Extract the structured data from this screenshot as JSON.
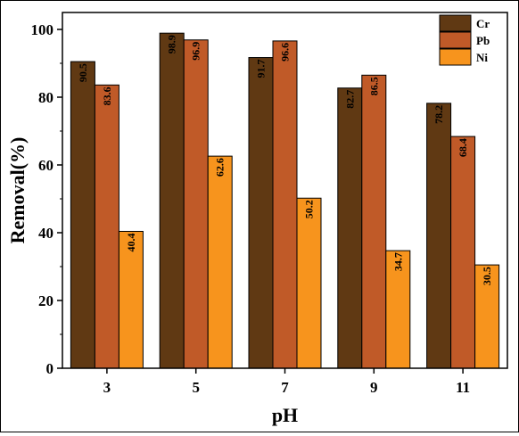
{
  "chart_data": {
    "type": "bar",
    "categories": [
      "3",
      "5",
      "7",
      "9",
      "11"
    ],
    "series": [
      {
        "name": "Cr",
        "color": "#603913",
        "values": [
          90.5,
          98.9,
          91.7,
          82.7,
          78.2
        ]
      },
      {
        "name": "Pb",
        "color": "#c05a28",
        "values": [
          83.6,
          96.9,
          96.6,
          86.5,
          68.4
        ]
      },
      {
        "name": "Ni",
        "color": "#f7941d",
        "values": [
          40.4,
          62.6,
          50.2,
          34.7,
          30.5
        ]
      }
    ],
    "title": "",
    "xlabel": "pH",
    "ylabel": "Removal(%)",
    "ylim": [
      0,
      105
    ],
    "yticks": [
      0,
      20,
      40,
      60,
      80,
      100
    ],
    "grid": false,
    "legend_position": "top-right"
  }
}
